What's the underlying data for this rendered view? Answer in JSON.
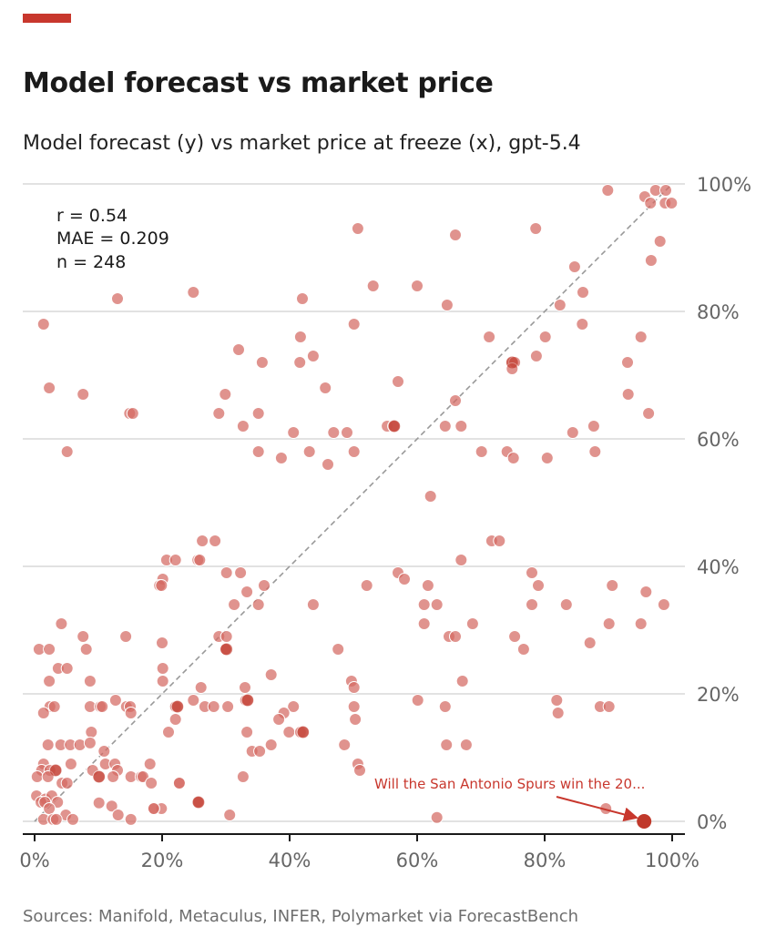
{
  "header": {
    "title": "Model forecast vs market price",
    "subtitle": "Model forecast (y) vs market price at freeze (x), gpt-5.4"
  },
  "footer": {
    "source": "Sources: Manifold, Metaculus, INFER, Polymarket via ForecastBench"
  },
  "colors": {
    "accent": "#c8372d",
    "point": "#d46a63",
    "highlight": "#c0392b",
    "grid": "#d9d9d9",
    "diagonal": "#999999"
  },
  "chart_data": {
    "type": "scatter",
    "title": "Model forecast vs market price",
    "subtitle": "Model forecast (y) vs market price at freeze (x), gpt-5.4",
    "xlabel": "Market price at freeze",
    "ylabel": "Model forecast",
    "xlim": [
      0,
      100
    ],
    "ylim": [
      0,
      100
    ],
    "x_ticks": [
      "0%",
      "20%",
      "40%",
      "60%",
      "80%",
      "100%"
    ],
    "y_ticks": [
      "0%",
      "20%",
      "40%",
      "60%",
      "80%",
      "100%"
    ],
    "grid": "horizontal",
    "stats": {
      "r": "r = 0.54",
      "mae": "MAE = 0.209",
      "n": "n = 248"
    },
    "reference_line": "y = x (dashed)",
    "highlight": {
      "x": 95.6,
      "y": 0,
      "label": "Will the San Antonio Spurs win the 20..."
    },
    "points": [
      [
        89.9,
        99
      ],
      [
        95.7,
        98
      ],
      [
        97.4,
        99
      ],
      [
        96.6,
        97
      ],
      [
        98.9,
        97
      ],
      [
        99.9,
        97
      ],
      [
        99,
        99
      ],
      [
        98.1,
        91
      ],
      [
        96.7,
        88
      ],
      [
        50.7,
        93
      ],
      [
        66,
        92
      ],
      [
        78.6,
        93
      ],
      [
        1.4,
        78
      ],
      [
        13,
        82
      ],
      [
        24.9,
        83
      ],
      [
        42,
        82
      ],
      [
        53.1,
        84
      ],
      [
        60,
        84
      ],
      [
        64.7,
        81
      ],
      [
        84.7,
        87
      ],
      [
        82.4,
        81
      ],
      [
        86,
        83
      ],
      [
        85.9,
        78
      ],
      [
        80.1,
        76
      ],
      [
        71.3,
        76
      ],
      [
        95.1,
        76
      ],
      [
        50.1,
        78
      ],
      [
        41.7,
        76
      ],
      [
        32,
        74
      ],
      [
        43.7,
        73
      ],
      [
        35.7,
        72
      ],
      [
        41.6,
        72
      ],
      [
        74.9,
        72
      ],
      [
        75.3,
        72
      ],
      [
        74.9,
        71
      ],
      [
        78.7,
        73
      ],
      [
        93,
        72
      ],
      [
        2.3,
        68
      ],
      [
        7.6,
        67
      ],
      [
        45.6,
        68
      ],
      [
        57,
        69
      ],
      [
        29.9,
        67
      ],
      [
        93.1,
        67
      ],
      [
        14.9,
        64
      ],
      [
        15.4,
        64
      ],
      [
        28.9,
        64
      ],
      [
        35.1,
        64
      ],
      [
        96.3,
        64
      ],
      [
        32.7,
        62
      ],
      [
        55.3,
        62
      ],
      [
        56.3,
        62
      ],
      [
        56.4,
        62
      ],
      [
        64.4,
        62
      ],
      [
        66.9,
        62
      ],
      [
        66,
        66
      ],
      [
        84.4,
        61
      ],
      [
        87.7,
        62
      ],
      [
        40.6,
        61
      ],
      [
        46.9,
        61
      ],
      [
        49,
        61
      ],
      [
        5.1,
        58
      ],
      [
        35.1,
        58
      ],
      [
        38.7,
        57
      ],
      [
        43.1,
        58
      ],
      [
        46,
        56
      ],
      [
        50.1,
        58
      ],
      [
        70.1,
        58
      ],
      [
        74.1,
        58
      ],
      [
        75.1,
        57
      ],
      [
        80.4,
        57
      ],
      [
        87.9,
        58
      ],
      [
        62.1,
        51
      ],
      [
        20.7,
        41
      ],
      [
        22.1,
        41
      ],
      [
        25.6,
        41
      ],
      [
        25.9,
        41
      ],
      [
        26.3,
        44
      ],
      [
        28.3,
        44
      ],
      [
        20.1,
        38
      ],
      [
        19.6,
        37
      ],
      [
        30.1,
        39
      ],
      [
        32.3,
        39
      ],
      [
        36,
        37
      ],
      [
        33.3,
        36
      ],
      [
        31.3,
        34
      ],
      [
        35.1,
        34
      ],
      [
        43.7,
        34
      ],
      [
        52.1,
        37
      ],
      [
        57,
        39
      ],
      [
        58,
        38
      ],
      [
        61.7,
        37
      ],
      [
        61.1,
        34
      ],
      [
        63.1,
        34
      ],
      [
        66.9,
        41
      ],
      [
        71.7,
        44
      ],
      [
        72.9,
        44
      ],
      [
        78,
        39
      ],
      [
        79,
        37
      ],
      [
        78,
        34
      ],
      [
        83.4,
        34
      ],
      [
        90.6,
        37
      ],
      [
        95.9,
        36
      ],
      [
        98.7,
        34
      ],
      [
        61.1,
        31
      ],
      [
        68.7,
        31
      ],
      [
        65,
        29
      ],
      [
        66,
        29
      ],
      [
        75.3,
        29
      ],
      [
        76.7,
        27
      ],
      [
        87.1,
        28
      ],
      [
        90.1,
        31
      ],
      [
        95.1,
        31
      ],
      [
        47.6,
        27
      ],
      [
        28.9,
        29
      ],
      [
        30.1,
        29
      ],
      [
        30.1,
        27
      ],
      [
        30,
        27
      ],
      [
        37.1,
        23
      ],
      [
        67.1,
        22
      ],
      [
        49.7,
        22
      ],
      [
        50.1,
        21
      ],
      [
        33,
        21
      ],
      [
        26.1,
        21
      ],
      [
        24.9,
        19
      ],
      [
        33.1,
        19
      ],
      [
        33.4,
        19
      ],
      [
        60.1,
        19
      ],
      [
        81.9,
        19
      ],
      [
        50.1,
        18
      ],
      [
        64.4,
        18
      ],
      [
        88.7,
        18
      ],
      [
        90.1,
        18
      ],
      [
        82.1,
        17
      ],
      [
        26.7,
        18
      ],
      [
        28.1,
        18
      ],
      [
        30.3,
        18
      ],
      [
        22.1,
        18
      ],
      [
        22.4,
        18
      ],
      [
        40.6,
        18
      ],
      [
        39.1,
        17
      ],
      [
        38.3,
        16
      ],
      [
        50.3,
        16
      ],
      [
        22.1,
        16
      ],
      [
        21,
        14
      ],
      [
        33.3,
        14
      ],
      [
        39.9,
        14
      ],
      [
        41.7,
        14
      ],
      [
        42.1,
        14
      ],
      [
        48.6,
        12
      ],
      [
        37.1,
        12
      ],
      [
        64.6,
        12
      ],
      [
        67.7,
        12
      ],
      [
        34.1,
        11
      ],
      [
        35.3,
        11
      ],
      [
        50.7,
        9
      ],
      [
        51,
        8
      ],
      [
        32.7,
        7
      ],
      [
        22.7,
        6
      ],
      [
        25.6,
        3
      ],
      [
        25.7,
        3
      ],
      [
        19.9,
        2
      ],
      [
        18.6,
        2
      ],
      [
        30.6,
        1
      ],
      [
        63.1,
        0.6
      ],
      [
        89.6,
        2
      ],
      [
        4.2,
        31
      ],
      [
        7.6,
        29
      ],
      [
        14.3,
        29
      ],
      [
        19.9,
        37
      ],
      [
        20,
        28
      ],
      [
        0.7,
        27
      ],
      [
        2.3,
        27
      ],
      [
        8.1,
        27
      ],
      [
        3.7,
        24
      ],
      [
        5.1,
        24
      ],
      [
        20.1,
        24
      ],
      [
        2.3,
        22
      ],
      [
        8.7,
        22
      ],
      [
        20.1,
        22
      ],
      [
        2.4,
        18
      ],
      [
        3.1,
        18
      ],
      [
        8.7,
        18
      ],
      [
        10.3,
        18
      ],
      [
        10.6,
        18
      ],
      [
        12.7,
        19
      ],
      [
        14.4,
        18
      ],
      [
        15,
        18
      ],
      [
        1.4,
        17
      ],
      [
        15.1,
        17
      ],
      [
        8.9,
        14
      ],
      [
        2.1,
        12
      ],
      [
        4.1,
        12
      ],
      [
        5.6,
        12
      ],
      [
        7.1,
        12
      ],
      [
        8.7,
        12.3
      ],
      [
        10.9,
        11
      ],
      [
        1.4,
        9
      ],
      [
        5.7,
        9
      ],
      [
        11.1,
        9
      ],
      [
        12.6,
        9
      ],
      [
        18.1,
        9
      ],
      [
        1.1,
        8
      ],
      [
        2.4,
        8
      ],
      [
        3.3,
        8
      ],
      [
        9.1,
        8
      ],
      [
        13,
        8
      ],
      [
        0.4,
        7
      ],
      [
        2.1,
        7
      ],
      [
        10.1,
        7
      ],
      [
        12.3,
        7
      ],
      [
        15.1,
        7
      ],
      [
        16.7,
        7
      ],
      [
        17,
        7
      ],
      [
        4.3,
        6
      ],
      [
        5.1,
        6
      ],
      [
        18.3,
        6
      ],
      [
        22.7,
        6
      ],
      [
        0.3,
        4
      ],
      [
        1.7,
        3.5
      ],
      [
        2.7,
        4
      ],
      [
        3.6,
        3
      ],
      [
        1,
        3
      ],
      [
        1.6,
        3
      ],
      [
        10.1,
        2.9
      ],
      [
        12.1,
        2.4
      ],
      [
        2.3,
        2
      ],
      [
        18.7,
        2
      ],
      [
        4.9,
        1
      ],
      [
        13.1,
        1
      ],
      [
        1.4,
        0.3
      ],
      [
        2.9,
        0.3
      ],
      [
        3.4,
        0.3
      ],
      [
        6,
        0.3
      ],
      [
        15.1,
        0.3
      ]
    ],
    "dark_points": [
      [
        10.1,
        7
      ],
      [
        3.3,
        8
      ],
      [
        25.7,
        3
      ],
      [
        56.4,
        62
      ],
      [
        74.9,
        72
      ],
      [
        22.4,
        18
      ],
      [
        30.1,
        27
      ],
      [
        33.4,
        19
      ],
      [
        42.1,
        14
      ]
    ]
  }
}
